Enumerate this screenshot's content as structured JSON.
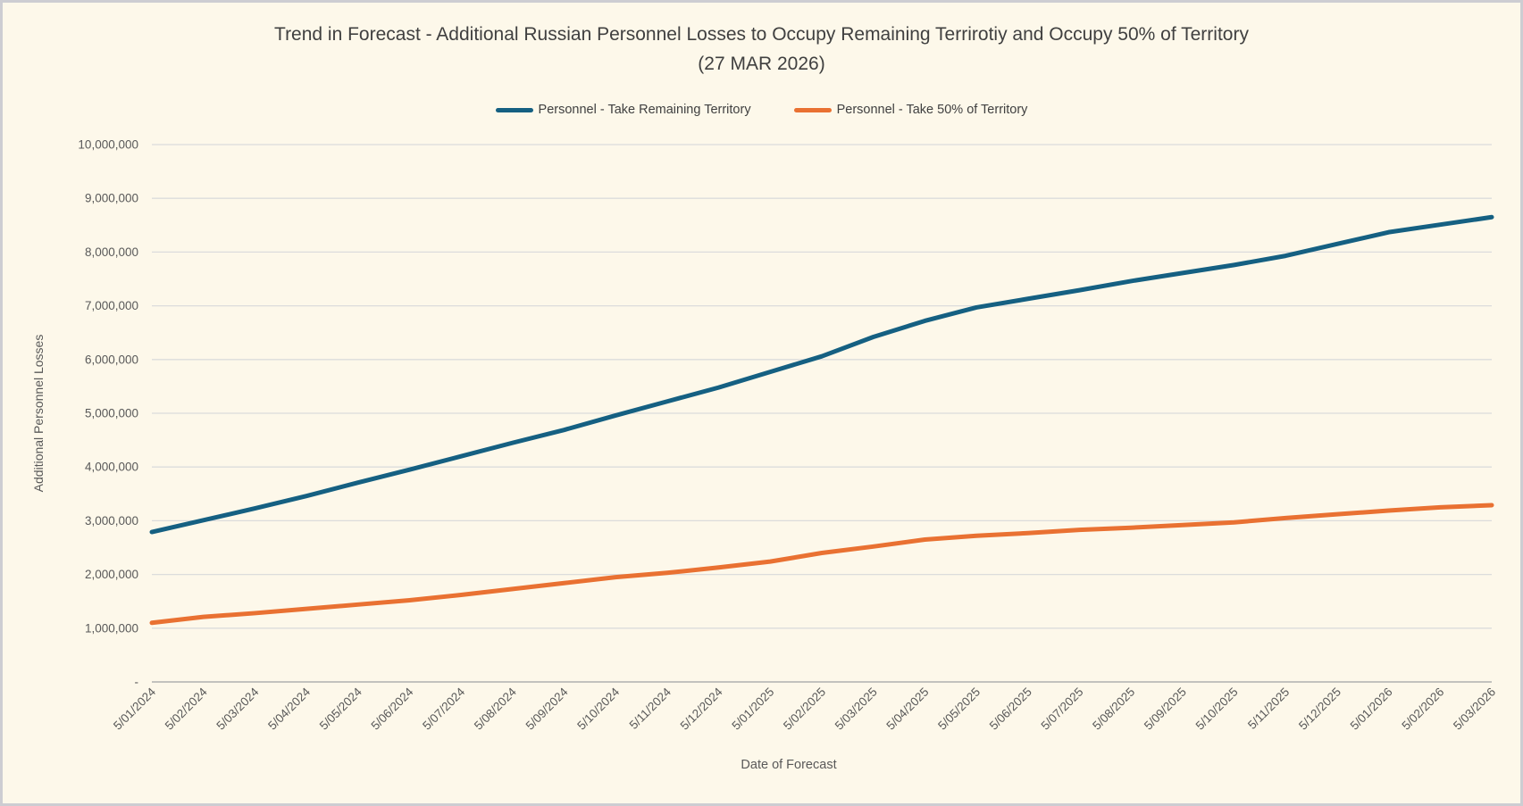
{
  "title": {
    "line1": "Trend in Forecast - Additional Russian Personnel Losses to Occupy Remaining Terrirotiy and Occupy 50% of Territory",
    "line2": "(27 MAR 2026)"
  },
  "chart_data": {
    "type": "line",
    "title": "Trend in Forecast - Additional Russian Personnel Losses to Occupy Remaining Terrirotiy and Occupy 50% of Territory (27 MAR 2026)",
    "xlabel": "Date of Forecast",
    "ylabel": "Additional Personnel Losses",
    "ylim": [
      0,
      10000000
    ],
    "y_tick_step": 1000000,
    "y_tick_labels": [
      "-",
      "1,000,000",
      "2,000,000",
      "3,000,000",
      "4,000,000",
      "5,000,000",
      "6,000,000",
      "7,000,000",
      "8,000,000",
      "9,000,000",
      "10,000,000"
    ],
    "grid": "horizontal-only",
    "legend_position": "top-center",
    "x_tick_rotation_deg": -45,
    "categories": [
      "5/01/2024",
      "5/02/2024",
      "5/03/2024",
      "5/04/2024",
      "5/05/2024",
      "5/06/2024",
      "5/07/2024",
      "5/08/2024",
      "5/09/2024",
      "5/10/2024",
      "5/11/2024",
      "5/12/2024",
      "5/01/2025",
      "5/02/2025",
      "5/03/2025",
      "5/04/2025",
      "5/05/2025",
      "5/06/2025",
      "5/07/2025",
      "5/08/2025",
      "5/09/2025",
      "5/10/2025",
      "5/11/2025",
      "5/12/2025",
      "5/01/2026",
      "5/02/2026",
      "5/03/2026"
    ],
    "series": [
      {
        "name": "Personnel - Take Remaining Territory",
        "color": "#156082",
        "values": [
          2790000,
          3010000,
          3230000,
          3460000,
          3710000,
          3950000,
          4200000,
          4450000,
          4690000,
          4960000,
          5220000,
          5480000,
          5770000,
          6060000,
          6420000,
          6720000,
          6970000,
          7130000,
          7290000,
          7460000,
          7610000,
          7760000,
          7930000,
          8150000,
          8370000,
          8510000,
          8650000
        ]
      },
      {
        "name": "Personnel - Take 50% of Territory",
        "color": "#E97132",
        "values": [
          1100000,
          1210000,
          1280000,
          1360000,
          1440000,
          1520000,
          1620000,
          1730000,
          1840000,
          1950000,
          2030000,
          2130000,
          2240000,
          2400000,
          2520000,
          2650000,
          2720000,
          2770000,
          2830000,
          2870000,
          2920000,
          2970000,
          3050000,
          3120000,
          3190000,
          3250000,
          3290000
        ]
      }
    ]
  },
  "colors": {
    "background": "#FDF8EA",
    "frame_border": "#CDCDD2",
    "gridline": "#DCDCDC",
    "axis_line": "#B0B0B0",
    "tick_label": "#595959",
    "title_text": "#404040",
    "legend_text": "#404040"
  }
}
